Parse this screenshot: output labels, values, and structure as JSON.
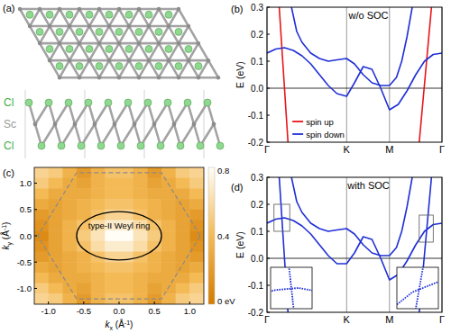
{
  "structure": {
    "label": "(a)",
    "layers": [
      "Cl",
      "Sc",
      "Cl"
    ]
  },
  "chart_data": [
    {
      "type": "line",
      "label": "(b)",
      "title": "w/o SOC",
      "ylabel": "E (eV)",
      "xlim": [
        0,
        1
      ],
      "xticks": [
        {
          "value": 0,
          "label": "Γ"
        },
        {
          "value": 0.455,
          "label": "K"
        },
        {
          "value": 0.7,
          "label": "M"
        },
        {
          "value": 1,
          "label": "Γ"
        }
      ],
      "ylim": [
        -0.2,
        0.3
      ],
      "yticks": [
        -0.2,
        -0.1,
        {
          "value": 0,
          "label": "0.0"
        },
        0.1,
        0.2,
        0.3
      ],
      "grid": true,
      "fermi_level": 0,
      "legend": "lower left",
      "series": [
        {
          "name": "spin up",
          "color": "#e8151b",
          "x": [
            0.07,
            0.095,
            0.12,
            null,
            0.87,
            0.905,
            0.94
          ],
          "values": [
            0.3,
            0.05,
            -0.2,
            null,
            -0.2,
            0.05,
            0.3
          ]
        },
        {
          "name": "spin down",
          "color": "#1f2fd6",
          "x": [
            0,
            0.05,
            0.1,
            0.15,
            0.2,
            0.25,
            0.3,
            0.35,
            0.4,
            0.455,
            0.5,
            0.55,
            0.6,
            0.65,
            0.7,
            0.75,
            0.8,
            0.85,
            0.9,
            0.95,
            1,
            null,
            0.14,
            0.17,
            0.2,
            0.25,
            0.3,
            0.35,
            0.4,
            0.455,
            0.5,
            0.55,
            0.6,
            0.65,
            0.7,
            0.74,
            0.77,
            0.8,
            0.83
          ],
          "values": [
            0.13,
            0.145,
            0.15,
            0.14,
            0.12,
            0.09,
            0.05,
            0.01,
            -0.02,
            -0.03,
            0.02,
            0.08,
            0.07,
            0.0,
            -0.08,
            -0.06,
            -0.01,
            0.05,
            0.1,
            0.125,
            0.13,
            null,
            0.3,
            0.21,
            0.17,
            0.13,
            0.11,
            0.1,
            0.105,
            0.11,
            0.09,
            0.05,
            0.02,
            0.01,
            0.01,
            0.04,
            0.1,
            0.19,
            0.3
          ]
        }
      ]
    },
    {
      "type": "heatmap",
      "label": "(c)",
      "xlabel": {
        "symbol": "k",
        "subscript": "x",
        "unit": " (Å",
        "superscript": "-1",
        "close": ")"
      },
      "ylabel": {
        "symbol": "k",
        "subscript": "y",
        "unit": " (Å",
        "superscript": "-1",
        "close": ")"
      },
      "xlim": [
        -1.2,
        1.2
      ],
      "ylim": [
        -1.3,
        1.3
      ],
      "xticks": [
        {
          "value": -1,
          "label": "-1.0"
        },
        -0.5,
        {
          "value": 0,
          "label": "0.0"
        },
        0.5,
        {
          "value": 1,
          "label": "1.0"
        }
      ],
      "yticks": [
        {
          "value": -1,
          "label": "-1.0"
        },
        -0.5,
        {
          "value": 0,
          "label": "0.0"
        },
        0.5,
        {
          "value": 1,
          "label": "1.0"
        }
      ],
      "x": [
        -1.1,
        -0.9,
        -0.7,
        -0.5,
        -0.3,
        -0.1,
        0.1,
        0.3,
        0.5,
        0.7,
        0.9,
        1.1
      ],
      "y": [
        1.2,
        1.0,
        0.8,
        0.6,
        0.4,
        0.2,
        0.0,
        -0.2,
        -0.4,
        -0.6,
        -0.8,
        -1.0,
        -1.2
      ],
      "cells": [
        [
          0.55,
          0.5,
          0.35,
          0.2,
          0.35,
          0.45,
          0.45,
          0.35,
          0.2,
          0.35,
          0.5,
          0.55
        ],
        [
          0.5,
          0.4,
          0.3,
          0.25,
          0.35,
          0.4,
          0.4,
          0.35,
          0.25,
          0.3,
          0.4,
          0.5
        ],
        [
          0.4,
          0.3,
          0.3,
          0.3,
          0.35,
          0.4,
          0.4,
          0.35,
          0.3,
          0.3,
          0.3,
          0.4
        ],
        [
          0.3,
          0.25,
          0.3,
          0.35,
          0.4,
          0.45,
          0.45,
          0.4,
          0.35,
          0.3,
          0.25,
          0.3
        ],
        [
          0.2,
          0.25,
          0.3,
          0.35,
          0.45,
          0.55,
          0.55,
          0.45,
          0.35,
          0.3,
          0.25,
          0.2
        ],
        [
          0.15,
          0.25,
          0.35,
          0.45,
          0.6,
          0.7,
          0.7,
          0.6,
          0.45,
          0.35,
          0.25,
          0.15
        ],
        [
          0.1,
          0.25,
          0.35,
          0.5,
          0.65,
          0.8,
          0.8,
          0.65,
          0.5,
          0.35,
          0.25,
          0.1
        ],
        [
          0.15,
          0.25,
          0.35,
          0.45,
          0.6,
          0.7,
          0.7,
          0.6,
          0.45,
          0.35,
          0.25,
          0.15
        ],
        [
          0.2,
          0.25,
          0.3,
          0.35,
          0.45,
          0.55,
          0.55,
          0.45,
          0.35,
          0.3,
          0.25,
          0.2
        ],
        [
          0.3,
          0.25,
          0.3,
          0.35,
          0.4,
          0.45,
          0.45,
          0.4,
          0.35,
          0.3,
          0.25,
          0.3
        ],
        [
          0.4,
          0.3,
          0.3,
          0.3,
          0.35,
          0.4,
          0.4,
          0.35,
          0.3,
          0.3,
          0.3,
          0.4
        ],
        [
          0.5,
          0.4,
          0.3,
          0.25,
          0.35,
          0.4,
          0.4,
          0.35,
          0.25,
          0.3,
          0.4,
          0.5
        ],
        [
          0.55,
          0.5,
          0.35,
          0.2,
          0.35,
          0.45,
          0.45,
          0.35,
          0.2,
          0.35,
          0.5,
          0.55
        ]
      ],
      "colorbar": {
        "range": [
          0,
          0.8
        ],
        "ticks": [
          {
            "value": 0,
            "label": "0 eV"
          },
          0.4,
          0.8
        ]
      },
      "brillouin_zone": [
        [
          1.15,
          0
        ],
        [
          0.6,
          1.2
        ],
        [
          -0.6,
          1.2
        ],
        [
          -1.15,
          0
        ],
        [
          -0.6,
          -1.2
        ],
        [
          0.6,
          -1.2
        ]
      ],
      "weyl_ring": {
        "label": "type-II Weyl ring",
        "center": [
          0,
          0
        ],
        "rx": 0.6,
        "ry": 0.46
      }
    },
    {
      "type": "line",
      "label": "(d)",
      "title": "with SOC",
      "ylabel": "E (eV)",
      "xlim": [
        0,
        1
      ],
      "xticks": [
        {
          "value": 0,
          "label": "Γ"
        },
        {
          "value": 0.455,
          "label": "K"
        },
        {
          "value": 0.7,
          "label": "M"
        },
        {
          "value": 1,
          "label": "Γ"
        }
      ],
      "ylim": [
        -0.2,
        0.3
      ],
      "yticks": [
        -0.2,
        -0.1,
        {
          "value": 0,
          "label": "0.0"
        },
        0.1,
        0.2,
        0.3
      ],
      "grid": true,
      "fermi_level": 0,
      "series": [
        {
          "color": "#1f2fd6",
          "x": [
            0.07,
            0.095,
            0.12,
            null,
            0.87,
            0.905,
            0.94,
            null,
            0,
            0.05,
            0.1,
            0.15,
            0.2,
            0.25,
            0.3,
            0.35,
            0.4,
            0.455,
            0.5,
            0.55,
            0.6,
            0.65,
            0.7,
            0.75,
            0.8,
            0.85,
            0.9,
            0.95,
            1,
            null,
            0.14,
            0.17,
            0.2,
            0.25,
            0.3,
            0.35,
            0.4,
            0.455,
            0.5,
            0.55,
            0.6,
            0.65,
            0.7,
            0.74,
            0.77,
            0.8,
            0.83
          ],
          "values": [
            0.3,
            0.05,
            -0.2,
            null,
            -0.2,
            0.05,
            0.3,
            null,
            0.13,
            0.145,
            0.15,
            0.14,
            0.12,
            0.09,
            0.05,
            0.01,
            -0.02,
            -0.02,
            0.02,
            0.08,
            0.07,
            0.0,
            -0.08,
            -0.06,
            -0.01,
            0.05,
            0.1,
            0.125,
            0.13,
            null,
            0.3,
            0.21,
            0.17,
            0.13,
            0.11,
            0.1,
            0.105,
            0.11,
            0.09,
            0.05,
            0.02,
            0.01,
            0.01,
            0.04,
            0.1,
            0.19,
            0.3
          ]
        }
      ],
      "insets": [
        {
          "xlim": [
            0.04,
            0.13
          ],
          "ylim": [
            0.1,
            0.2
          ]
        },
        {
          "xlim": [
            0.87,
            0.95
          ],
          "ylim": [
            0.06,
            0.16
          ]
        }
      ]
    }
  ]
}
